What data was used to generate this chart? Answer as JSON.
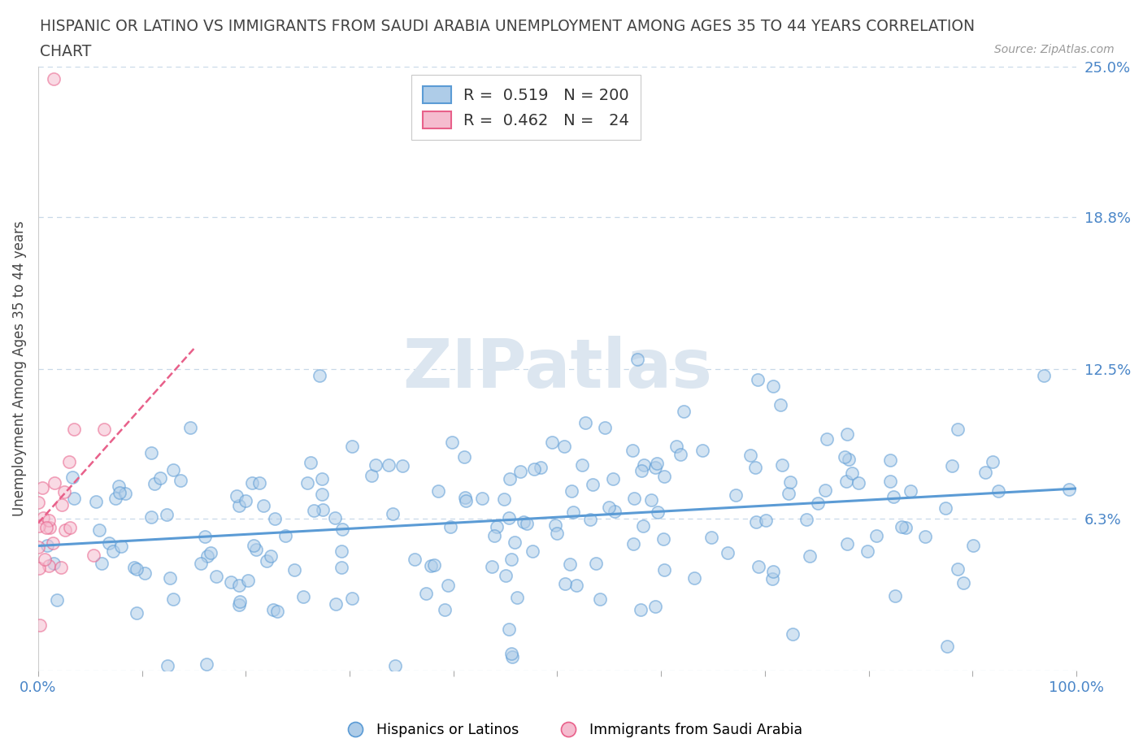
{
  "title_line1": "HISPANIC OR LATINO VS IMMIGRANTS FROM SAUDI ARABIA UNEMPLOYMENT AMONG AGES 35 TO 44 YEARS CORRELATION",
  "title_line2": "CHART",
  "source": "Source: ZipAtlas.com",
  "ylabel": "Unemployment Among Ages 35 to 44 years",
  "xmin": 0.0,
  "xmax": 100.0,
  "ymin": 0.0,
  "ymax": 25.0,
  "yticks": [
    0.0,
    6.3,
    12.5,
    18.8,
    25.0
  ],
  "ytick_labels": [
    "",
    "6.3%",
    "12.5%",
    "18.8%",
    "25.0%"
  ],
  "xtick_labels": [
    "0.0%",
    "",
    "",
    "",
    "",
    "",
    "",
    "",
    "",
    "",
    "100.0%"
  ],
  "blue_color": "#5b9bd5",
  "blue_fill": "#aecce8",
  "pink_color": "#e8608a",
  "pink_fill": "#f5bccf",
  "blue_R": 0.519,
  "blue_N": 200,
  "pink_R": 0.462,
  "pink_N": 24,
  "watermark": "ZIPatlas",
  "watermark_color": "#dce6f0",
  "background_color": "#ffffff",
  "grid_color": "#c8d8e8",
  "label_color": "#4a86c8",
  "title_color": "#444444",
  "source_color": "#999999"
}
